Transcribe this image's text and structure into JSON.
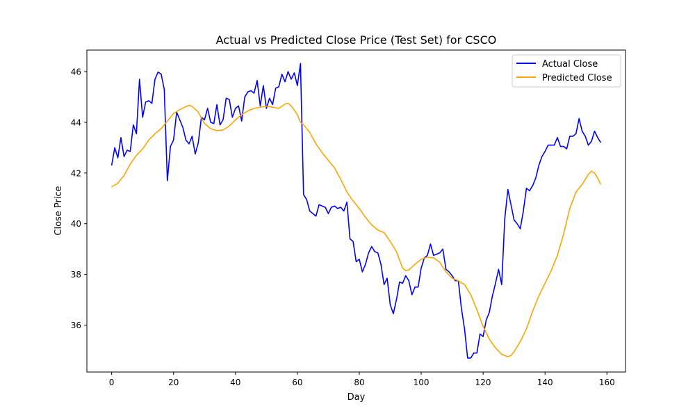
{
  "chart_data": {
    "type": "line",
    "title": "Actual vs Predicted Close Price (Test Set) for CSCO",
    "xlabel": "Day",
    "ylabel": "Close Price",
    "xlim": [
      -8,
      166
    ],
    "ylim": [
      34.15,
      46.85
    ],
    "xticks": [
      0,
      20,
      40,
      60,
      80,
      100,
      120,
      140,
      160
    ],
    "yticks": [
      36,
      38,
      40,
      42,
      44,
      46
    ],
    "grid": false,
    "legend_position": "top-right",
    "series": [
      {
        "name": "Actual Close",
        "color": "#0000ff",
        "points": [
          [
            0,
            42.3
          ],
          [
            1,
            43.0
          ],
          [
            2,
            42.6
          ],
          [
            3,
            43.4
          ],
          [
            4,
            42.65
          ],
          [
            5,
            42.9
          ],
          [
            6,
            42.85
          ],
          [
            7,
            43.9
          ],
          [
            8,
            43.55
          ],
          [
            9,
            45.7
          ],
          [
            10,
            44.2
          ],
          [
            11,
            44.8
          ],
          [
            12,
            44.85
          ],
          [
            13,
            44.75
          ],
          [
            14,
            45.7
          ],
          [
            15,
            45.98
          ],
          [
            16,
            45.9
          ],
          [
            17,
            45.3
          ],
          [
            18,
            41.7
          ],
          [
            19,
            43.05
          ],
          [
            20,
            43.3
          ],
          [
            21,
            44.4
          ],
          [
            22,
            44.1
          ],
          [
            23,
            43.8
          ],
          [
            24,
            43.3
          ],
          [
            25,
            43.15
          ],
          [
            26,
            43.45
          ],
          [
            27,
            42.75
          ],
          [
            28,
            43.2
          ],
          [
            29,
            44.2
          ],
          [
            30,
            44.1
          ],
          [
            31,
            44.55
          ],
          [
            32,
            44.0
          ],
          [
            33,
            43.95
          ],
          [
            34,
            44.7
          ],
          [
            35,
            43.9
          ],
          [
            36,
            44.1
          ],
          [
            37,
            44.95
          ],
          [
            38,
            44.9
          ],
          [
            39,
            44.2
          ],
          [
            40,
            44.55
          ],
          [
            41,
            44.65
          ],
          [
            42,
            44.05
          ],
          [
            43,
            45.0
          ],
          [
            44,
            45.2
          ],
          [
            45,
            45.25
          ],
          [
            46,
            45.15
          ],
          [
            47,
            45.65
          ],
          [
            48,
            44.65
          ],
          [
            49,
            45.45
          ],
          [
            50,
            44.55
          ],
          [
            51,
            44.95
          ],
          [
            52,
            44.7
          ],
          [
            53,
            45.35
          ],
          [
            54,
            45.4
          ],
          [
            55,
            45.9
          ],
          [
            56,
            45.6
          ],
          [
            57,
            46.0
          ],
          [
            58,
            45.7
          ],
          [
            59,
            45.95
          ],
          [
            60,
            45.45
          ],
          [
            61,
            46.32
          ],
          [
            62,
            41.15
          ],
          [
            63,
            40.95
          ],
          [
            64,
            40.5
          ],
          [
            65,
            40.4
          ],
          [
            66,
            40.3
          ],
          [
            67,
            40.75
          ],
          [
            68,
            40.7
          ],
          [
            69,
            40.65
          ],
          [
            70,
            40.4
          ],
          [
            71,
            40.65
          ],
          [
            72,
            40.7
          ],
          [
            73,
            40.6
          ],
          [
            74,
            40.65
          ],
          [
            75,
            40.5
          ],
          [
            76,
            40.85
          ],
          [
            77,
            39.4
          ],
          [
            78,
            39.3
          ],
          [
            79,
            38.5
          ],
          [
            80,
            38.6
          ],
          [
            81,
            38.1
          ],
          [
            82,
            38.4
          ],
          [
            83,
            38.85
          ],
          [
            84,
            39.1
          ],
          [
            85,
            38.9
          ],
          [
            86,
            38.85
          ],
          [
            87,
            38.4
          ],
          [
            88,
            37.6
          ],
          [
            89,
            37.85
          ],
          [
            90,
            36.8
          ],
          [
            91,
            36.45
          ],
          [
            92,
            37.0
          ],
          [
            93,
            37.7
          ],
          [
            94,
            37.65
          ],
          [
            95,
            37.95
          ],
          [
            96,
            37.75
          ],
          [
            97,
            37.2
          ],
          [
            98,
            37.5
          ],
          [
            99,
            37.5
          ],
          [
            100,
            38.25
          ],
          [
            101,
            38.65
          ],
          [
            102,
            38.75
          ],
          [
            103,
            39.2
          ],
          [
            104,
            38.75
          ],
          [
            105,
            38.8
          ],
          [
            106,
            38.85
          ],
          [
            107,
            39.0
          ],
          [
            108,
            38.2
          ],
          [
            109,
            38.1
          ],
          [
            110,
            37.95
          ],
          [
            111,
            37.75
          ],
          [
            112,
            37.75
          ],
          [
            113,
            36.65
          ],
          [
            114,
            35.85
          ],
          [
            115,
            34.7
          ],
          [
            116,
            34.7
          ],
          [
            117,
            34.9
          ],
          [
            118,
            34.9
          ],
          [
            119,
            35.65
          ],
          [
            120,
            35.55
          ],
          [
            121,
            36.2
          ],
          [
            122,
            36.5
          ],
          [
            123,
            37.15
          ],
          [
            124,
            37.65
          ],
          [
            125,
            38.2
          ],
          [
            126,
            37.6
          ],
          [
            127,
            40.2
          ],
          [
            128,
            41.35
          ],
          [
            129,
            40.75
          ],
          [
            130,
            40.15
          ],
          [
            131,
            40.0
          ],
          [
            132,
            39.8
          ],
          [
            133,
            40.5
          ],
          [
            134,
            41.4
          ],
          [
            135,
            41.3
          ],
          [
            136,
            41.5
          ],
          [
            137,
            41.8
          ],
          [
            138,
            42.3
          ],
          [
            139,
            42.65
          ],
          [
            140,
            42.85
          ],
          [
            141,
            43.1
          ],
          [
            142,
            43.1
          ],
          [
            143,
            43.1
          ],
          [
            144,
            43.4
          ],
          [
            145,
            43.05
          ],
          [
            146,
            43.05
          ],
          [
            147,
            42.95
          ],
          [
            148,
            43.45
          ],
          [
            149,
            43.45
          ],
          [
            150,
            43.55
          ],
          [
            151,
            44.15
          ],
          [
            152,
            43.65
          ],
          [
            153,
            43.45
          ],
          [
            154,
            43.1
          ],
          [
            155,
            43.25
          ],
          [
            156,
            43.65
          ],
          [
            157,
            43.4
          ],
          [
            158,
            43.2
          ]
        ]
      },
      {
        "name": "Predicted Close",
        "color": "#ffa500",
        "points": [
          [
            0,
            41.45
          ],
          [
            2,
            41.6
          ],
          [
            4,
            41.9
          ],
          [
            6,
            42.35
          ],
          [
            8,
            42.7
          ],
          [
            10,
            42.95
          ],
          [
            12,
            43.3
          ],
          [
            14,
            43.55
          ],
          [
            16,
            43.75
          ],
          [
            18,
            44.05
          ],
          [
            20,
            44.35
          ],
          [
            22,
            44.5
          ],
          [
            24,
            44.62
          ],
          [
            25,
            44.67
          ],
          [
            26,
            44.63
          ],
          [
            28,
            44.4
          ],
          [
            30,
            43.95
          ],
          [
            32,
            43.75
          ],
          [
            34,
            43.67
          ],
          [
            36,
            43.7
          ],
          [
            38,
            43.85
          ],
          [
            40,
            44.1
          ],
          [
            42,
            44.3
          ],
          [
            44,
            44.45
          ],
          [
            46,
            44.55
          ],
          [
            48,
            44.6
          ],
          [
            50,
            44.63
          ],
          [
            52,
            44.6
          ],
          [
            54,
            44.55
          ],
          [
            56,
            44.72
          ],
          [
            57,
            44.75
          ],
          [
            58,
            44.65
          ],
          [
            60,
            44.3
          ],
          [
            61,
            44.0
          ],
          [
            62,
            43.9
          ],
          [
            64,
            43.6
          ],
          [
            66,
            43.15
          ],
          [
            68,
            42.8
          ],
          [
            70,
            42.5
          ],
          [
            72,
            42.2
          ],
          [
            74,
            41.75
          ],
          [
            76,
            41.25
          ],
          [
            78,
            40.9
          ],
          [
            80,
            40.6
          ],
          [
            82,
            40.25
          ],
          [
            84,
            39.95
          ],
          [
            86,
            39.75
          ],
          [
            88,
            39.65
          ],
          [
            90,
            39.3
          ],
          [
            92,
            38.9
          ],
          [
            94,
            38.25
          ],
          [
            95,
            38.15
          ],
          [
            96,
            38.18
          ],
          [
            98,
            38.4
          ],
          [
            100,
            38.6
          ],
          [
            102,
            38.68
          ],
          [
            104,
            38.65
          ],
          [
            106,
            38.48
          ],
          [
            108,
            38.1
          ],
          [
            110,
            37.85
          ],
          [
            112,
            37.75
          ],
          [
            114,
            37.6
          ],
          [
            116,
            37.2
          ],
          [
            118,
            36.6
          ],
          [
            120,
            35.95
          ],
          [
            122,
            35.45
          ],
          [
            124,
            35.1
          ],
          [
            126,
            34.85
          ],
          [
            128,
            34.75
          ],
          [
            129,
            34.8
          ],
          [
            130,
            34.95
          ],
          [
            132,
            35.35
          ],
          [
            134,
            35.85
          ],
          [
            136,
            36.55
          ],
          [
            138,
            37.15
          ],
          [
            140,
            37.65
          ],
          [
            142,
            38.15
          ],
          [
            144,
            38.75
          ],
          [
            146,
            39.6
          ],
          [
            148,
            40.6
          ],
          [
            150,
            41.25
          ],
          [
            152,
            41.55
          ],
          [
            154,
            41.95
          ],
          [
            155,
            42.07
          ],
          [
            156,
            42.0
          ],
          [
            157,
            41.8
          ],
          [
            158,
            41.55
          ]
        ]
      }
    ]
  }
}
